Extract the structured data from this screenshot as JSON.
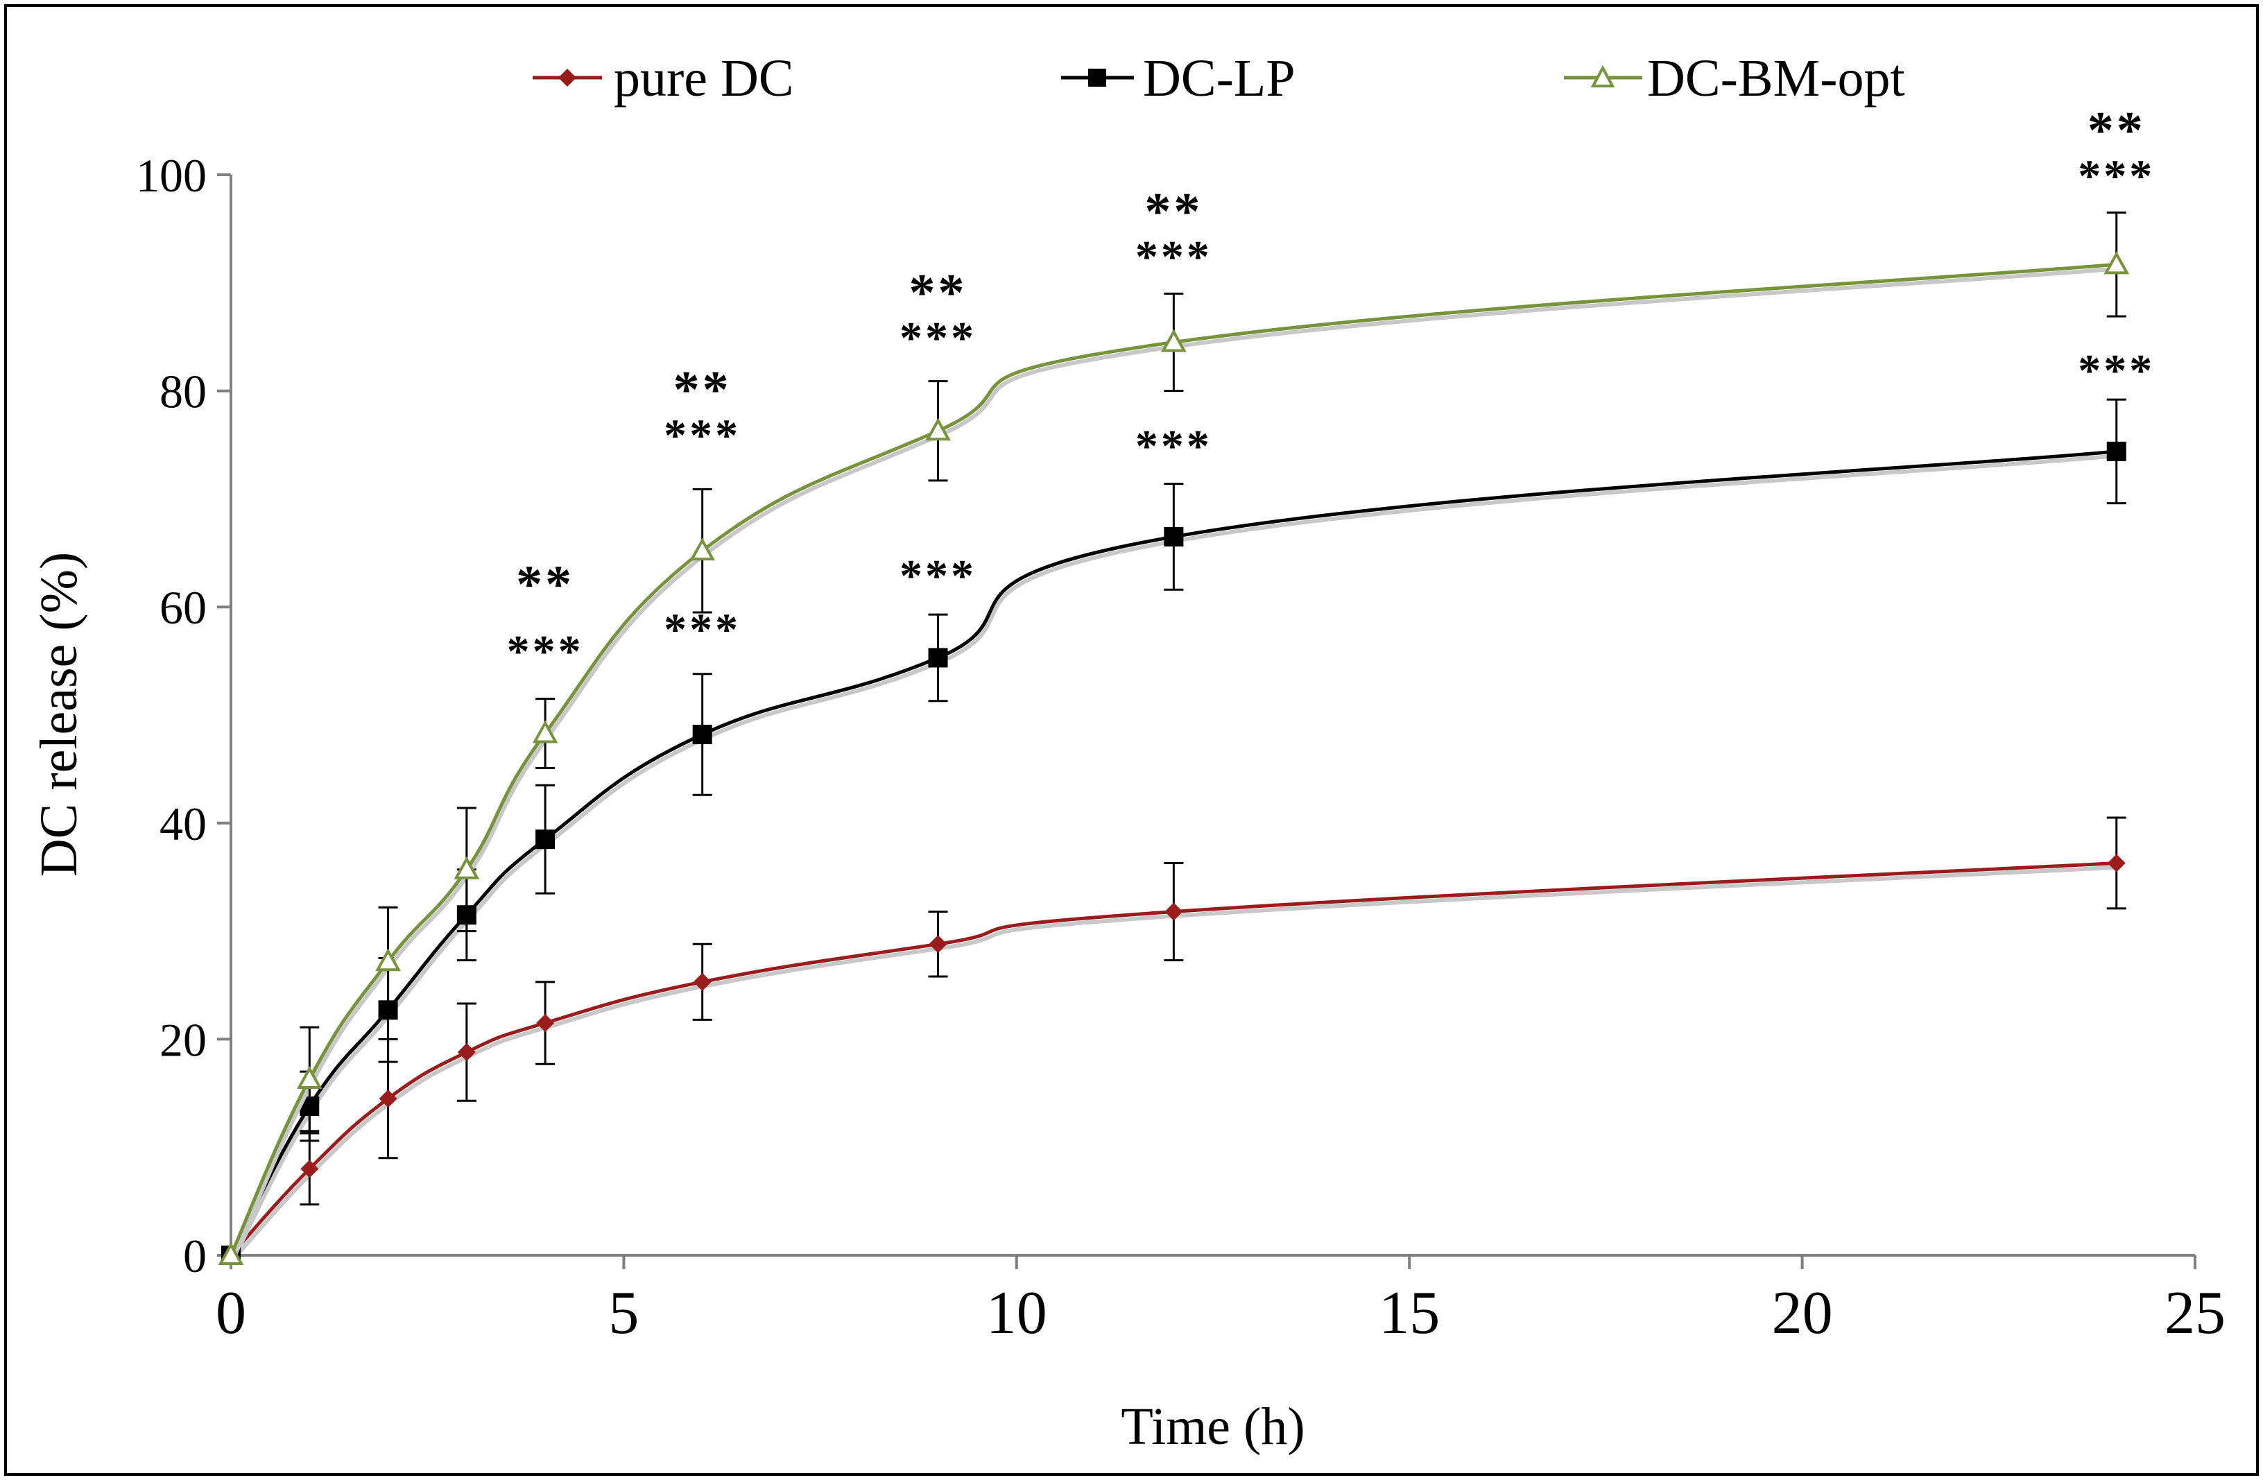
{
  "chart_data": {
    "type": "line",
    "title": "",
    "xlabel": "Time (h)",
    "ylabel": "DC release (%)",
    "xlim": [
      0,
      25
    ],
    "ylim": [
      0,
      100
    ],
    "xticks": [
      0,
      5,
      10,
      15,
      20,
      25
    ],
    "yticks": [
      0,
      20,
      40,
      60,
      80,
      100
    ],
    "xtick_labels": [
      "0",
      "5",
      "10",
      "15",
      "20",
      "25"
    ],
    "ytick_labels": [
      "0",
      "20",
      "40",
      "60",
      "80",
      "100"
    ],
    "grid": false,
    "legend_position": "top",
    "x": [
      0,
      1,
      2,
      3,
      4,
      6,
      9,
      12,
      24
    ],
    "series": [
      {
        "name": "pure DC",
        "color": "#9b1c1c",
        "marker": "diamond",
        "values": [
          0,
          8,
          14.5,
          18.8,
          21.5,
          25.3,
          28.8,
          31.8,
          36.3
        ],
        "errors": [
          0,
          3.3,
          5.5,
          4.5,
          3.8,
          3.5,
          3.0,
          4.5,
          4.2
        ]
      },
      {
        "name": "DC-LP",
        "color": "#000000",
        "marker": "square",
        "values": [
          0,
          13.8,
          22.7,
          31.5,
          38.5,
          48.2,
          55.3,
          66.5,
          74.4
        ],
        "errors": [
          0,
          3.2,
          4.8,
          4.2,
          5.0,
          5.6,
          4.0,
          4.9,
          4.8
        ]
      },
      {
        "name": "DC-BM-opt",
        "color": "#77933c",
        "marker": "triangle-open",
        "values": [
          0,
          16.3,
          27.2,
          35.7,
          48.3,
          65.2,
          76.3,
          84.5,
          91.7
        ],
        "errors": [
          0,
          4.8,
          5.0,
          5.7,
          3.2,
          5.7,
          4.6,
          4.5,
          4.8
        ]
      }
    ],
    "annotations": [
      {
        "text": "***",
        "x": 4,
        "y": 54.5
      },
      {
        "text": "**",
        "x": 4,
        "y": 60.5
      },
      {
        "text": "***",
        "x": 6,
        "y": 56.5
      },
      {
        "text": "***",
        "x": 6,
        "y": 74.5
      },
      {
        "text": "**",
        "x": 6,
        "y": 78.5
      },
      {
        "text": "***",
        "x": 9,
        "y": 61.5
      },
      {
        "text": "***",
        "x": 9,
        "y": 83.5
      },
      {
        "text": "**",
        "x": 9,
        "y": 87.5
      },
      {
        "text": "***",
        "x": 12,
        "y": 73.5
      },
      {
        "text": "***",
        "x": 12,
        "y": 91.0
      },
      {
        "text": "**",
        "x": 12,
        "y": 95.0
      },
      {
        "text": "***",
        "x": 24,
        "y": 80.5
      },
      {
        "text": "***",
        "x": 24,
        "y": 98.5
      },
      {
        "text": "**",
        "x": 24,
        "y": 102.5
      }
    ]
  }
}
